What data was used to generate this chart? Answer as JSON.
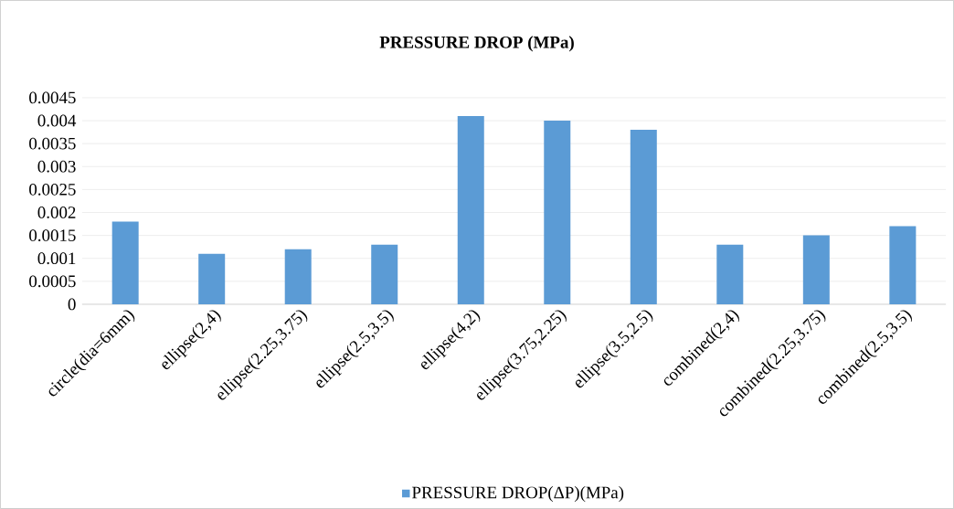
{
  "chart_data": {
    "type": "bar",
    "title": "PRESSURE DROP (MPa)",
    "categories": [
      "circle(dia=6mm)",
      "ellipse(2,4)",
      "ellipse(2.25,3.75)",
      "ellipse(2.5,3.5)",
      "ellipse(4,2)",
      "ellipse(3.75,2.25)",
      "ellipse(3.5,2.5)",
      "combined(2,4)",
      "combined(2.25,3.75)",
      "combined(2.5,3.5)"
    ],
    "series": [
      {
        "name": "PRESSURE DROP(ΔP)(MPa)",
        "color": "#5b9bd5",
        "values": [
          0.0018,
          0.0011,
          0.0012,
          0.0013,
          0.0041,
          0.004,
          0.0038,
          0.0013,
          0.0015,
          0.0017
        ]
      }
    ],
    "ylim": [
      0,
      0.0045
    ],
    "yticks": [
      0,
      0.0005,
      0.001,
      0.0015,
      0.002,
      0.0025,
      0.003,
      0.0035,
      0.004,
      0.0045
    ],
    "grid": "y",
    "legend": "bottom"
  }
}
